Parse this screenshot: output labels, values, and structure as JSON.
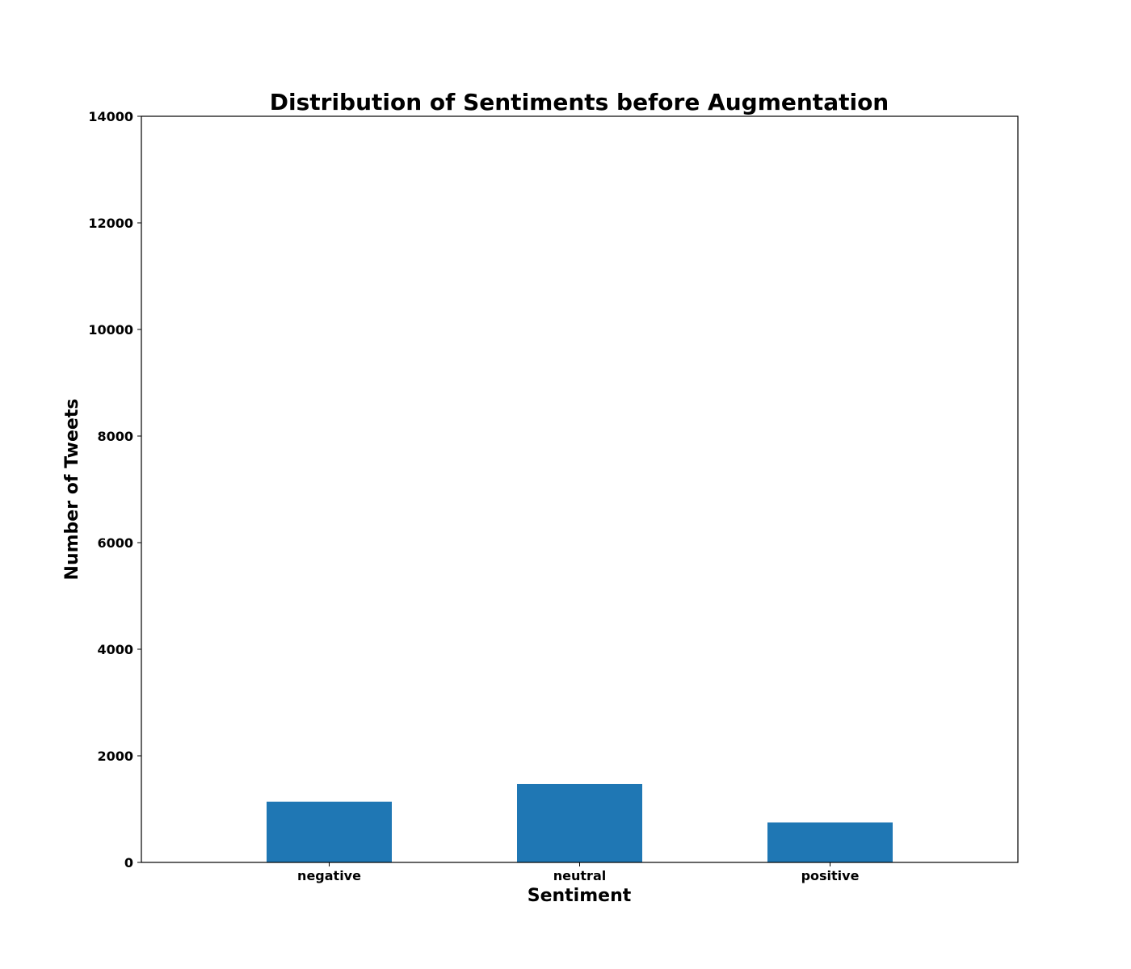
{
  "chart_data": {
    "type": "bar",
    "title": "Distribution of Sentiments before Augmentation",
    "xlabel": "Sentiment",
    "ylabel": "Number of Tweets",
    "categories": [
      "negative",
      "neutral",
      "positive"
    ],
    "values": [
      1140,
      1470,
      750
    ],
    "ylim": [
      0,
      14000
    ],
    "yticks": [
      0,
      2000,
      4000,
      6000,
      8000,
      10000,
      12000,
      14000
    ],
    "bar_color": "#1f77b4",
    "grid": false,
    "legend": false
  }
}
